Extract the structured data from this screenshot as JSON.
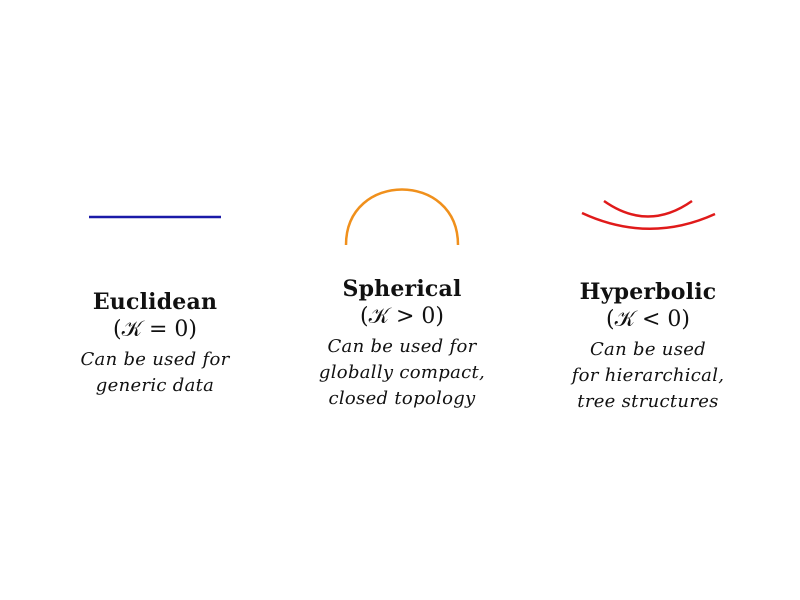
{
  "colors": {
    "euclidean": "#1a1aa8",
    "spherical": "#f0901c",
    "hyperbolic": "#e01a1a"
  },
  "panels": {
    "euclidean": {
      "title": "Euclidean",
      "curvature": "(𝒦 = 0)",
      "desc": [
        "Can be used for",
        "generic data"
      ]
    },
    "spherical": {
      "title": "Spherical",
      "curvature": "(𝒦 > 0)",
      "desc": [
        "Can be used for",
        "globally compact,",
        "closed topology"
      ]
    },
    "hyperbolic": {
      "title": "Hyperbolic",
      "curvature": "(𝒦 < 0)",
      "desc": [
        "Can be used",
        "for hierarchical,",
        "tree structures"
      ]
    }
  }
}
